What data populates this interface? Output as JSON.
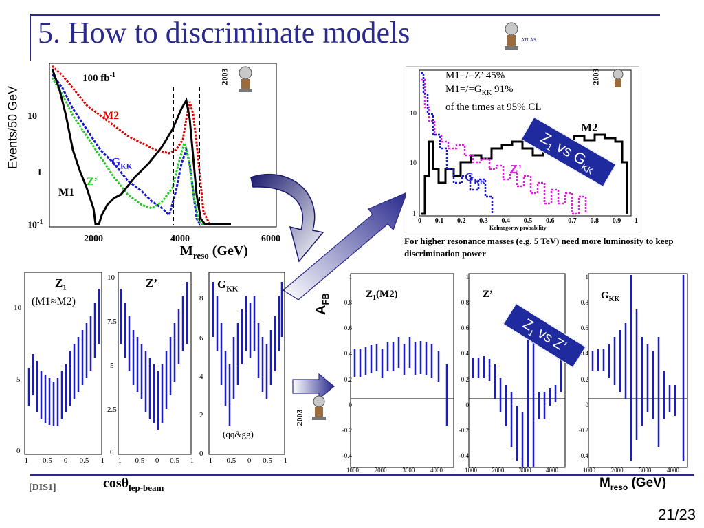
{
  "slide": {
    "title": "5. How to discriminate models",
    "page": "21/23",
    "reference": "[DIS1]",
    "colors": {
      "title": "#2a2a8e",
      "rule": "#2a2a8e",
      "m1": "#000000",
      "m2": "#e00000",
      "gkk": "#1a1ad0",
      "zprime": "#22cc22",
      "pink": "#e020e0",
      "banner": "#1f2a9e"
    }
  },
  "mass_plot": {
    "ylabel": "Events/50 GeV",
    "lumi": "100 fb",
    "lumi_exp": "-1",
    "year": "2003",
    "xlabel_main": "M",
    "xlabel_sub": "reso",
    "xlabel_unit": " (GeV)",
    "ytick_10": "10",
    "ytick_1": "1",
    "ytick_01": "10",
    "ytick_01_exp": "-1",
    "xticks": [
      "2000",
      "4000",
      "6000"
    ],
    "labels": {
      "m2": "M2",
      "gkk": "G",
      "gkk_sub": "KK",
      "zprime": "Z’",
      "m1": "M1"
    }
  },
  "ks_plot": {
    "year": "2003",
    "annotation": [
      "M1=/=Z’  45%",
      "M1=/=G",
      "KK",
      " 91%",
      "of the times at 95% CL"
    ],
    "xlabel": "Kolmogorov probability",
    "xticks": [
      "0",
      "0.1",
      "0.2",
      "0.3",
      "0.4",
      "0.5",
      "0.6",
      "0.7",
      "0.8",
      "0.9",
      "1"
    ],
    "yticks": [
      "10",
      "10",
      "1"
    ],
    "labels": {
      "m2": "M2",
      "gkk": "G",
      "gkk_sub": "KK",
      "zprime": "Z’"
    },
    "banner": {
      "text": "Z",
      "sub": "1",
      "rest": " vs G",
      "sub2": "KK"
    },
    "note": "For higher resonance masses (e.g. 5 TeV) need more luminosity to keep discrimination power"
  },
  "angular_plots": {
    "xlabel_main": "cosθ",
    "xlabel_sub": "lep-beam",
    "panels": [
      {
        "label": "Z",
        "sub": "1",
        "extra": "(M1≈M2)",
        "yticks": [
          "10",
          "5",
          "0"
        ],
        "xticks": [
          "-1",
          "-0.5",
          "0",
          "0.5",
          "1"
        ]
      },
      {
        "label": "Z’",
        "yticks": [
          "10",
          "7.5",
          "5",
          "2.5",
          "0"
        ],
        "xticks": [
          "-1",
          "-0.5",
          "0",
          "0.5",
          "1"
        ]
      },
      {
        "label": "G",
        "sub": "KK",
        "extra": "(qq&gg)",
        "yticks": [
          "8",
          "6",
          "4",
          "2",
          "0"
        ],
        "xticks": [
          "-1",
          "-0.5",
          "0",
          "0.5",
          "1"
        ]
      }
    ]
  },
  "afb_plots": {
    "ylabel_main": "A",
    "ylabel_sub": "FB",
    "year": "2003",
    "xlabel_main": "M",
    "xlabel_sub": "reso",
    "xlabel_unit": " (GeV)",
    "yticks": [
      "1",
      "0.8",
      "0.6",
      "0.4",
      "0.2",
      "0",
      "-0.2",
      "-0.4"
    ],
    "xticks": [
      "1000",
      "2000",
      "3000",
      "4000"
    ],
    "panels": [
      {
        "label": "Z",
        "sub": "1",
        "extra": "(M2)"
      },
      {
        "label": "Z’"
      },
      {
        "label": "G",
        "sub": "KK"
      }
    ],
    "banner": {
      "text": "Z",
      "sub": "1",
      "rest": " vs Z’"
    }
  }
}
